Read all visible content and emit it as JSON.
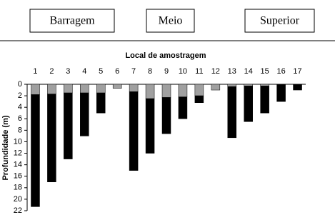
{
  "labels": [
    "Barragem",
    "Meio",
    "Superior"
  ],
  "chart_data": {
    "type": "bar",
    "stacked": true,
    "title": "Local de amostragem",
    "y_label": "Profundidade (m)",
    "categories": [
      "1",
      "2",
      "3",
      "4",
      "5",
      "6",
      "7",
      "8",
      "9",
      "10",
      "11",
      "12",
      "13",
      "14",
      "15",
      "16",
      "17"
    ],
    "series": [
      {
        "color": "#a0a0a0",
        "values": [
          1.8,
          1.7,
          1.5,
          1.5,
          1.5,
          0.7,
          1.3,
          2.5,
          2.3,
          2.2,
          2,
          1,
          0.4,
          0.3,
          0.3,
          0,
          0
        ]
      },
      {
        "color": "#000000",
        "values": [
          19.5,
          15.3,
          11.5,
          7.5,
          3.5,
          0,
          13.7,
          9.5,
          6.3,
          3.8,
          1.2,
          0,
          8.9,
          6.2,
          4.7,
          3,
          1
        ]
      }
    ],
    "ylim": [
      0,
      22
    ],
    "yticks": [
      0,
      2,
      4,
      6,
      8,
      10,
      12,
      14,
      16,
      18,
      20,
      22
    ],
    "y_inverted": true
  }
}
